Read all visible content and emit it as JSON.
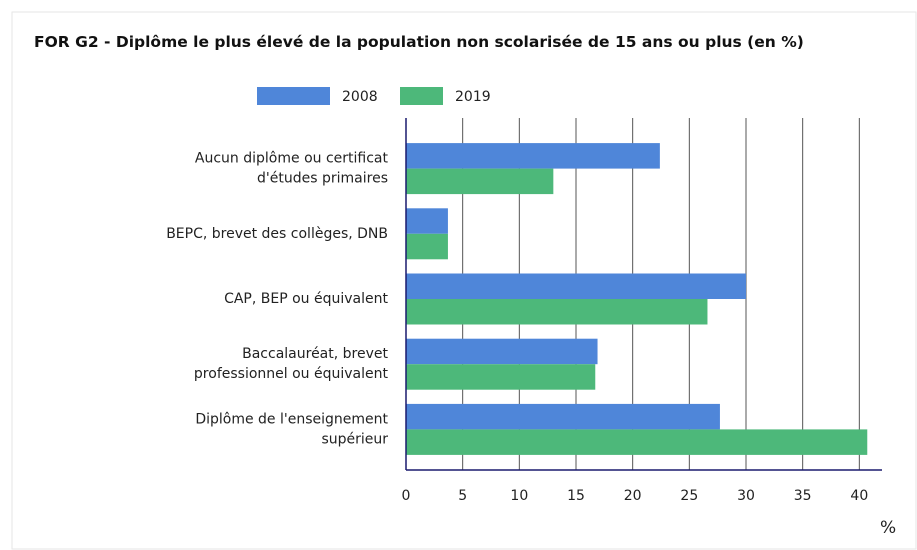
{
  "chart_data": {
    "type": "bar",
    "orientation": "horizontal",
    "title": "FOR G2 - Diplôme le plus élevé de la population non scolarisée de 15 ans ou plus (en %)",
    "x_label": "%",
    "categories": [
      "Aucun diplôme ou certificat\nd'études primaires",
      "BEPC, brevet des collèges, DNB",
      "CAP, BEP ou équivalent",
      "Baccalauréat, brevet\nprofessionnel ou équivalent",
      "Diplôme de l'enseignement\nsupérieur"
    ],
    "series": [
      {
        "name": "2008",
        "color": "#4f86d9",
        "values": [
          22.4,
          3.7,
          30.0,
          16.9,
          27.7
        ]
      },
      {
        "name": "2019",
        "color": "#4db87a",
        "values": [
          13.0,
          3.7,
          26.6,
          16.7,
          40.7
        ]
      }
    ],
    "xlim": [
      0,
      42
    ],
    "xticks": [
      0,
      5,
      10,
      15,
      20,
      25,
      30,
      35,
      40
    ],
    "grid": true
  }
}
